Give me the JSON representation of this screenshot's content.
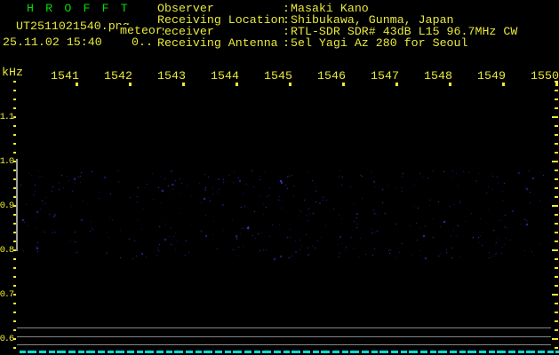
{
  "app": {
    "title": "H R O F F T"
  },
  "header": {
    "filename": "UT2511021540.png",
    "mode_label": "meteor",
    "datetime": "25.11.02 15:40",
    "counter": "0..",
    "separator": ":",
    "info": [
      {
        "label": "Observer",
        "value": "Masaki Kano"
      },
      {
        "label": "Receiving Location",
        "value": "Shibukawa, Gunma, Japan"
      },
      {
        "label": "Receiver",
        "value": "RTL-SDR SDR# 43dB L15 96.7MHz CW"
      },
      {
        "label": "Receiving Antenna",
        "value": "5el Yagi Az 280 for Seoul"
      }
    ]
  },
  "colors": {
    "bg": "#000000",
    "yellow": "#e9e93c",
    "green": "#06da06",
    "cyan": "#00dcdc",
    "gray": "#868686",
    "graybar": "#9c9c9c"
  },
  "chart_data": {
    "type": "heatmap",
    "title": "H R O F F T",
    "x": {
      "tick_labels": [
        "1541",
        "1542",
        "1543",
        "1544",
        "1545",
        "1546",
        "1547",
        "1548",
        "1549",
        "1550"
      ],
      "grid": false
    },
    "y": {
      "unit": "kHz",
      "tick_labels": [
        "1.1",
        "1.0",
        "0.9",
        "0.8",
        "0.7",
        "0.6"
      ],
      "tick_values": [
        1.1,
        1.0,
        0.9,
        0.8,
        0.7,
        0.6
      ],
      "range_est": [
        0.58,
        1.18
      ],
      "grid": false
    },
    "series": [],
    "annotations": [
      "no meteor echoes recorded; uniform faint background noise between ~0.80 and ~1.02 kHz",
      "gray level bar on left axis spans 1.0 to 0.8 kHz",
      "three gray horizontal baseline rows near bottom and cyan dashed time-marker row at bottom"
    ],
    "noise": {
      "seed": 13,
      "count": 430,
      "x_range": [
        22,
        618
      ],
      "y_range": [
        192,
        292
      ],
      "colors": [
        "#16165e",
        "#1b1b7e",
        "#24249c",
        "#3232c0",
        "#4646d2"
      ]
    }
  }
}
